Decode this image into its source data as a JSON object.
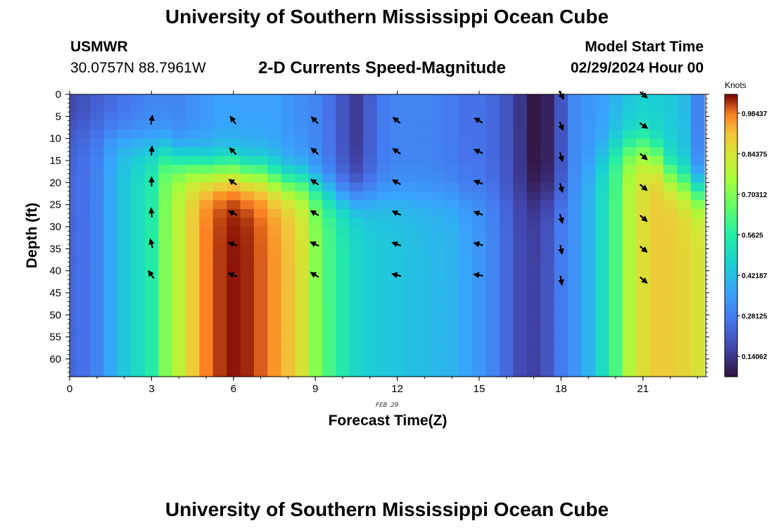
{
  "header": {
    "title": "University of Southern Mississippi Ocean Cube",
    "station_name": "USMWR",
    "station_coords": "30.0757N  88.7961W",
    "subtitle": "2-D Currents Speed-Magnitude",
    "model_start_label": "Model Start Time",
    "model_start_value": "02/29/2024 Hour 00",
    "footer_title": "University of Southern Mississippi Ocean Cube"
  },
  "chart_data": {
    "type": "heatmap",
    "title": "2-D Currents Speed-Magnitude",
    "xlabel": "Forecast Time(Z)",
    "ylabel": "Depth (ft)",
    "date_label": "FEB 29",
    "x_range": [
      0,
      23.3
    ],
    "x_ticks": [
      0,
      3,
      6,
      9,
      12,
      15,
      18,
      21
    ],
    "y_range": [
      0,
      64
    ],
    "y_ticks": [
      0,
      5,
      10,
      15,
      20,
      25,
      30,
      35,
      40,
      45,
      50,
      55,
      60
    ],
    "colorbar": {
      "unit": "Knots",
      "range": [
        0.07,
        1.05
      ],
      "ticks": [
        0.14062,
        0.28125,
        0.42187,
        0.5625,
        0.70312,
        0.84375,
        0.98437
      ],
      "tick_labels": [
        "0.14062",
        "0.28125",
        "0.42187",
        "0.5625",
        "0.70312",
        "0.84375",
        "0.98437"
      ]
    },
    "time_columns": [
      0,
      0.5,
      1,
      1.5,
      2,
      2.5,
      3,
      3.5,
      4,
      4.5,
      5,
      5.5,
      6,
      6.5,
      7,
      7.5,
      8,
      8.5,
      9,
      9.5,
      10,
      10.5,
      11,
      11.5,
      12,
      12.5,
      13,
      13.5,
      14,
      14.5,
      15,
      15.5,
      16,
      16.5,
      17,
      17.5,
      18,
      18.5,
      19,
      19.5,
      20,
      20.5,
      21,
      21.5,
      22,
      22.5,
      23
    ],
    "surface_speed": [
      0.17,
      0.19,
      0.22,
      0.24,
      0.26,
      0.28,
      0.3,
      0.3,
      0.3,
      0.32,
      0.34,
      0.36,
      0.36,
      0.36,
      0.36,
      0.36,
      0.34,
      0.32,
      0.3,
      0.26,
      0.2,
      0.15,
      0.22,
      0.28,
      0.3,
      0.3,
      0.3,
      0.29,
      0.28,
      0.26,
      0.26,
      0.24,
      0.2,
      0.14,
      0.08,
      0.1,
      0.2,
      0.31,
      0.34,
      0.36,
      0.4,
      0.44,
      0.46,
      0.46,
      0.45,
      0.42,
      0.3
    ],
    "deep_speed": [
      0.24,
      0.26,
      0.3,
      0.38,
      0.45,
      0.5,
      0.56,
      0.7,
      0.8,
      0.9,
      0.98,
      1.02,
      1.04,
      1.03,
      1.0,
      0.96,
      0.92,
      0.85,
      0.72,
      0.62,
      0.55,
      0.49,
      0.46,
      0.45,
      0.44,
      0.43,
      0.42,
      0.41,
      0.4,
      0.37,
      0.34,
      0.3,
      0.24,
      0.18,
      0.16,
      0.2,
      0.28,
      0.33,
      0.4,
      0.5,
      0.62,
      0.78,
      0.86,
      0.9,
      0.9,
      0.88,
      0.85
    ],
    "transition_depth": [
      8,
      8,
      9,
      9,
      10,
      11,
      12,
      13,
      15,
      16,
      17,
      17,
      17,
      18,
      18,
      19,
      20,
      20,
      21,
      22,
      23,
      23,
      23,
      23,
      23,
      23,
      23,
      23,
      23,
      23,
      23,
      23,
      23,
      23,
      23,
      23,
      23,
      20,
      17,
      14,
      12,
      12,
      12,
      14,
      18,
      20,
      22
    ],
    "vectors": [
      {
        "t": 3,
        "depths": [
          6,
          13,
          20,
          27,
          34,
          41
        ],
        "angles_deg": [
          10,
          5,
          0,
          -5,
          -15,
          -35
        ]
      },
      {
        "t": 6,
        "depths": [
          6,
          13,
          20,
          27,
          34,
          41
        ],
        "angles_deg": [
          -35,
          -45,
          -55,
          -65,
          -70,
          -70
        ]
      },
      {
        "t": 9,
        "depths": [
          6,
          13,
          20,
          27,
          34,
          41
        ],
        "angles_deg": [
          -45,
          -50,
          -55,
          -60,
          -65,
          -60
        ]
      },
      {
        "t": 12,
        "depths": [
          6,
          13,
          20,
          27,
          34,
          41
        ],
        "angles_deg": [
          -50,
          -55,
          -60,
          -65,
          -70,
          -75
        ]
      },
      {
        "t": 15,
        "depths": [
          6,
          13,
          20,
          27,
          34,
          41
        ],
        "angles_deg": [
          -60,
          -65,
          -70,
          -70,
          -75,
          -80
        ]
      },
      {
        "t": 18,
        "depths": [
          0,
          7,
          14,
          21,
          28,
          35,
          42
        ],
        "angles_deg": [
          150,
          160,
          165,
          165,
          165,
          170,
          170
        ]
      },
      {
        "t": 21,
        "depths": [
          0,
          7,
          14,
          21,
          28,
          35,
          42
        ],
        "angles_deg": [
          130,
          125,
          130,
          130,
          130,
          130,
          130
        ]
      }
    ]
  }
}
